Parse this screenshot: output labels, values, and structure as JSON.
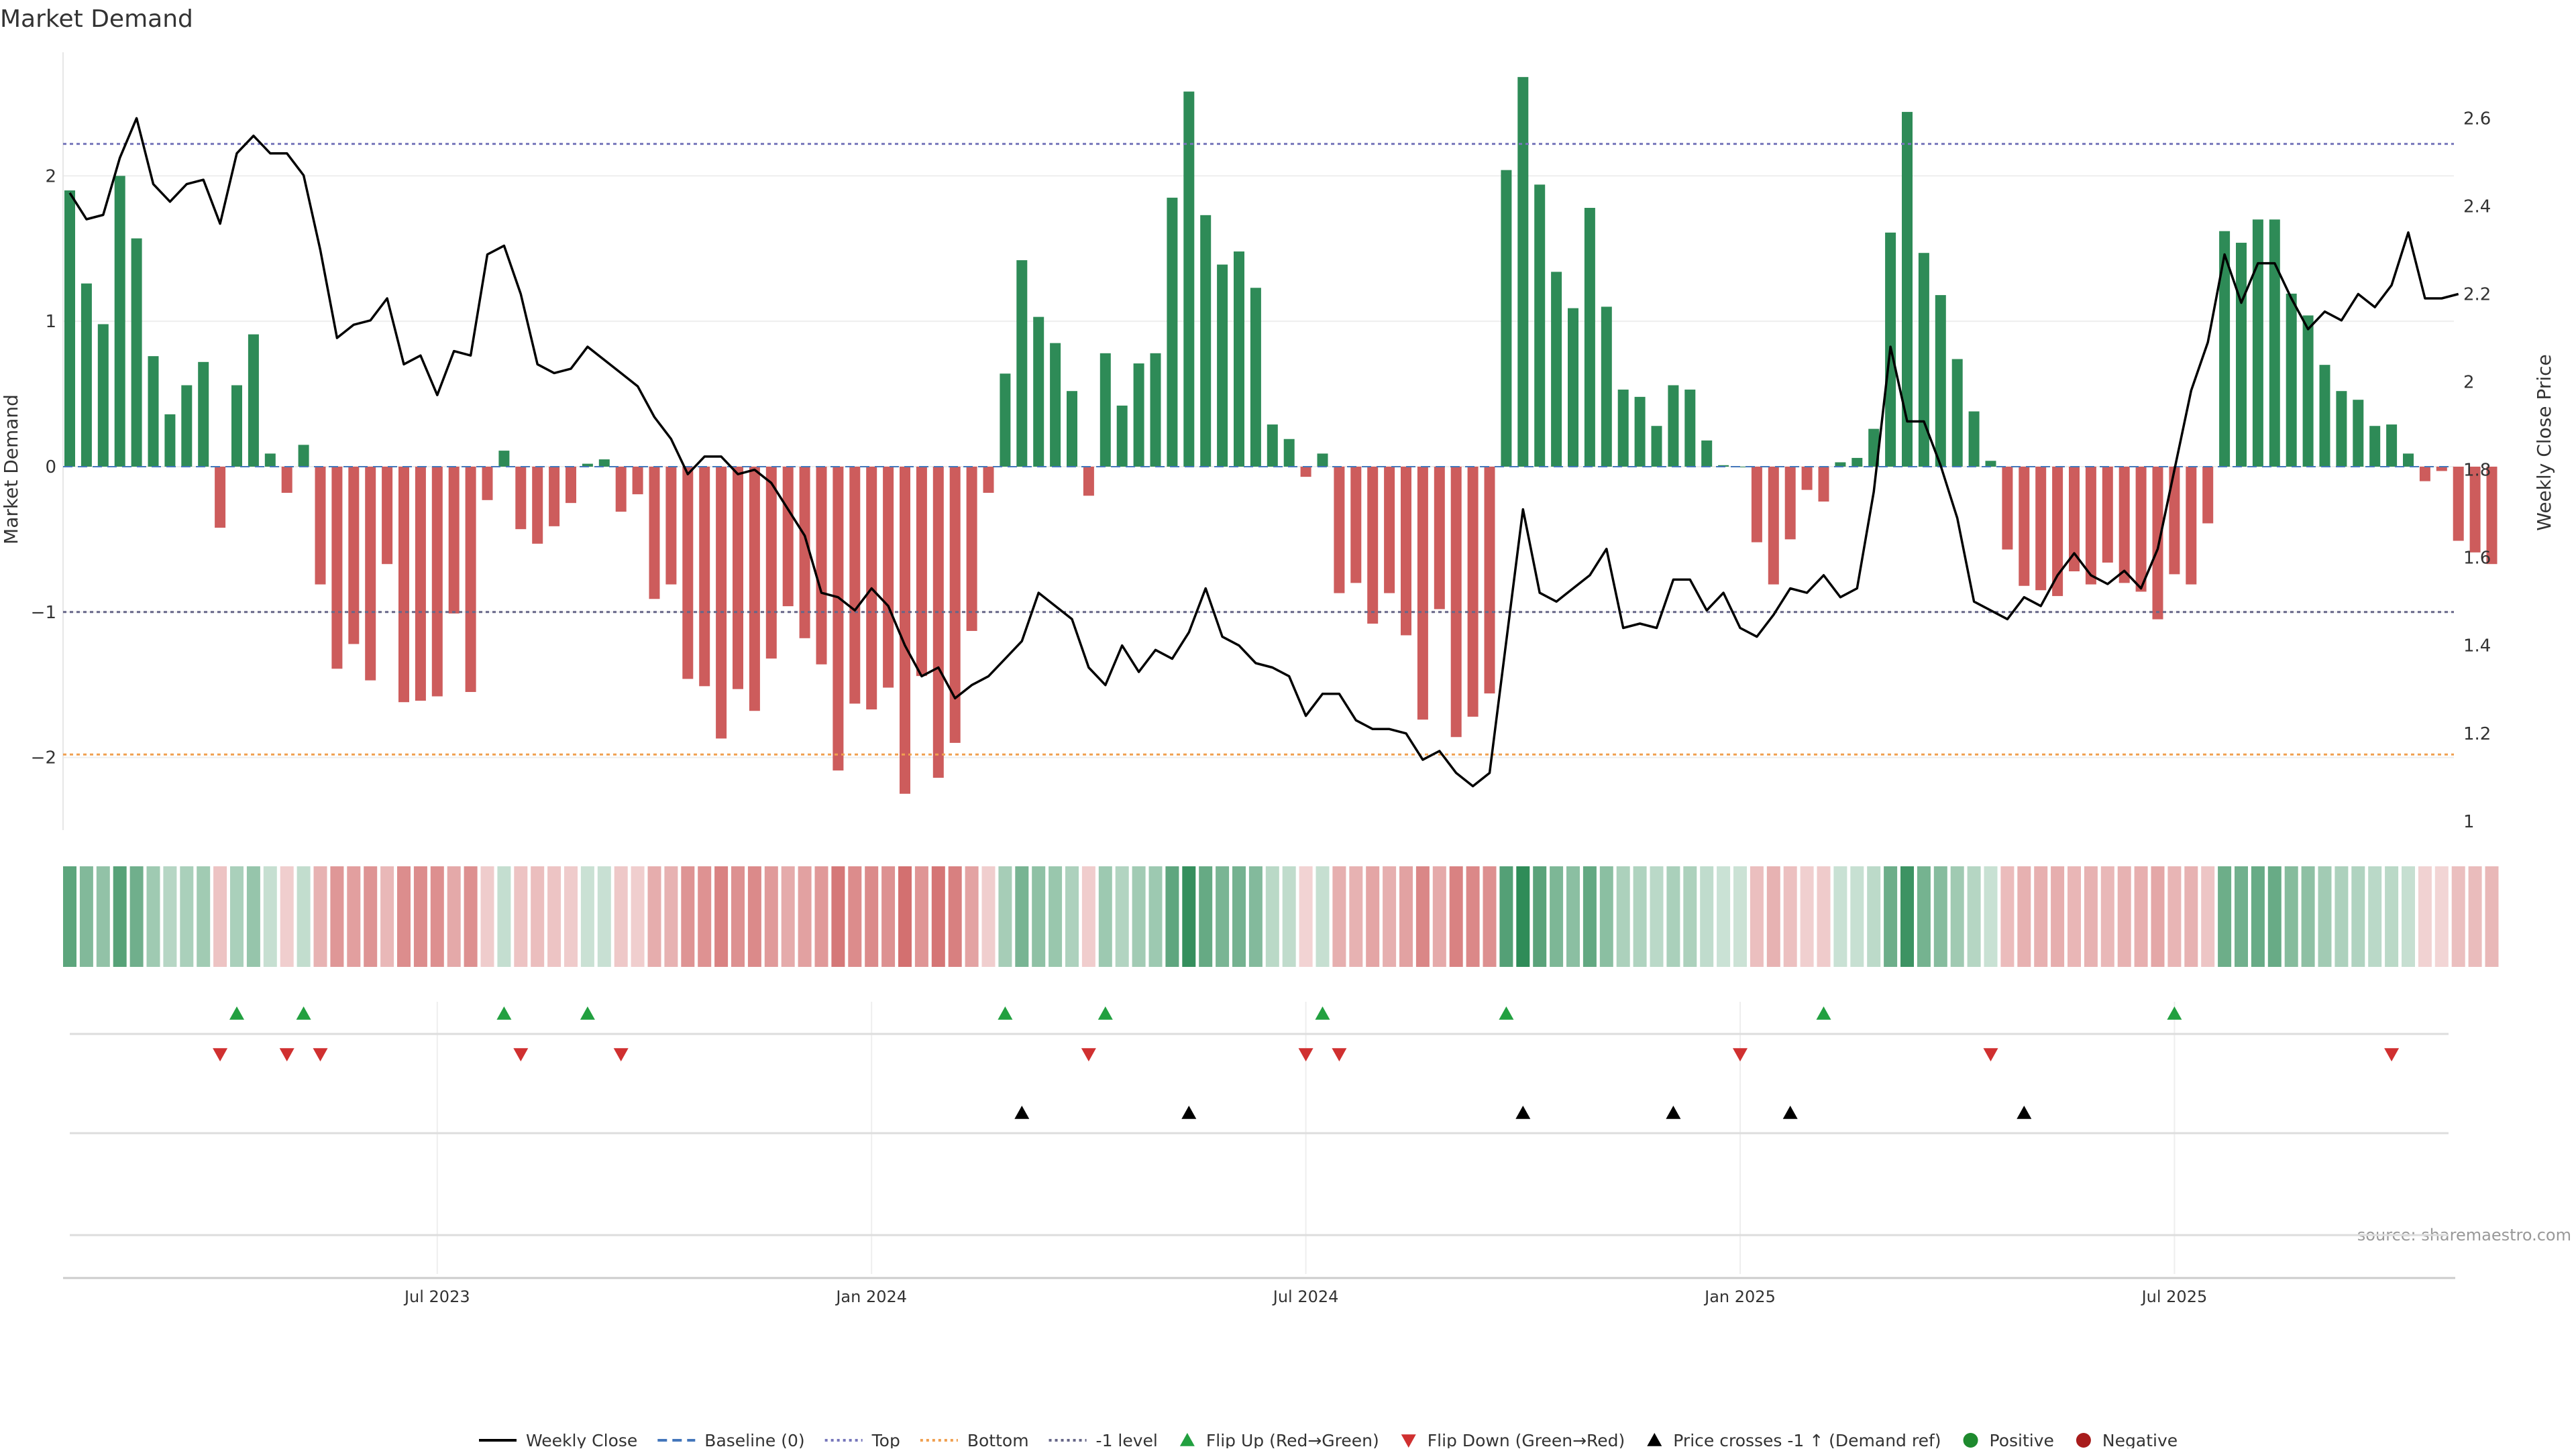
{
  "chart_data": {
    "type": "bar",
    "title": "Market Demand",
    "ylabel_left": "Market Demand",
    "ylabel_right": "Weekly Close Price",
    "ylim_left": [
      -2.5,
      2.85
    ],
    "ylim_right": [
      0.98,
      2.75
    ],
    "left_ticks": [
      {
        "v": 2,
        "label": "2"
      },
      {
        "v": 1,
        "label": "1"
      },
      {
        "v": 0,
        "label": "0"
      },
      {
        "v": -1,
        "label": "−1"
      },
      {
        "v": -2,
        "label": "−2"
      }
    ],
    "right_ticks": [
      {
        "v": 1.0,
        "label": "1"
      },
      {
        "v": 1.2,
        "label": "1.2"
      },
      {
        "v": 1.4,
        "label": "1.4"
      },
      {
        "v": 1.6,
        "label": "1.6"
      },
      {
        "v": 1.8,
        "label": "1.8"
      },
      {
        "v": 2.0,
        "label": "2"
      },
      {
        "v": 2.2,
        "label": "2.2"
      },
      {
        "v": 2.4,
        "label": "2.4"
      },
      {
        "v": 2.6,
        "label": "2.6"
      }
    ],
    "x_ticks": [
      {
        "week": 22,
        "label": "Jul 2023"
      },
      {
        "week": 48,
        "label": "Jan 2024"
      },
      {
        "week": 74,
        "label": "Jul 2024"
      },
      {
        "week": 100,
        "label": "Jan 2025"
      },
      {
        "week": 126,
        "label": "Jul 2025"
      }
    ],
    "reference_lines": [
      {
        "name": "Top",
        "value": 2.22,
        "color": "#7777bb"
      },
      {
        "name": "-1 level",
        "value": -1.0,
        "color": "#666688"
      },
      {
        "name": "Bottom",
        "value": -1.98,
        "color": "#f0a050"
      }
    ],
    "colors": {
      "positive": "#2e8b57",
      "negative": "#cd5c5c",
      "price": "#000000",
      "flip_up": "#22a040",
      "flip_down": "#d03030",
      "cross": "#000000"
    },
    "demand": [
      1.9,
      1.26,
      0.98,
      2.0,
      1.57,
      0.76,
      0.36,
      0.56,
      0.72,
      -0.42,
      0.56,
      0.91,
      0.09,
      -0.18,
      0.15,
      -0.81,
      -1.39,
      -1.22,
      -1.47,
      -0.67,
      -1.62,
      -1.61,
      -1.58,
      -1.01,
      -1.55,
      -0.23,
      0.11,
      -0.43,
      -0.53,
      -0.41,
      -0.25,
      0.02,
      0.05,
      -0.31,
      -0.19,
      -0.91,
      -0.81,
      -1.46,
      -1.51,
      -1.87,
      -1.53,
      -1.68,
      -1.32,
      -0.96,
      -1.18,
      -1.36,
      -2.09,
      -1.63,
      -1.67,
      -1.52,
      -2.25,
      -1.44,
      -2.14,
      -1.9,
      -1.13,
      -0.18,
      0.64,
      1.42,
      1.03,
      0.85,
      0.52,
      -0.2,
      0.78,
      0.42,
      0.71,
      0.78,
      1.85,
      2.58,
      1.73,
      1.39,
      1.48,
      1.23,
      0.29,
      0.19,
      -0.07,
      0.09,
      -0.87,
      -0.8,
      -1.08,
      -0.87,
      -1.16,
      -1.74,
      -0.98,
      -1.86,
      -1.72,
      -1.56,
      2.04,
      2.68,
      1.94,
      1.34,
      1.09,
      1.78,
      1.1,
      0.53,
      0.48,
      0.28,
      0.56,
      0.53,
      0.18,
      0.01,
      0.0,
      -0.52,
      -0.81,
      -0.5,
      -0.16,
      -0.24,
      0.03,
      0.06,
      0.26,
      1.61,
      2.44,
      1.47,
      1.18,
      0.74,
      0.38,
      0.04,
      -0.57,
      -0.82,
      -0.85,
      -0.89,
      -0.72,
      -0.81,
      -0.66,
      -0.8,
      -0.86,
      -1.05,
      -0.74,
      -0.81,
      -0.39,
      1.62,
      1.54,
      1.7,
      1.7,
      1.19,
      1.04,
      0.7,
      0.52,
      0.46,
      0.28,
      0.29,
      0.09,
      -0.1,
      -0.03,
      -0.51,
      -0.59,
      -0.67
    ],
    "price": [
      2.43,
      2.37,
      2.38,
      2.51,
      2.6,
      2.45,
      2.41,
      2.45,
      2.46,
      2.36,
      2.52,
      2.56,
      2.52,
      2.52,
      2.47,
      2.3,
      2.1,
      2.13,
      2.14,
      2.19,
      2.04,
      2.06,
      1.97,
      2.07,
      2.06,
      2.29,
      2.31,
      2.2,
      2.04,
      2.02,
      2.03,
      2.08,
      2.05,
      2.02,
      1.99,
      1.92,
      1.87,
      1.79,
      1.83,
      1.83,
      1.79,
      1.8,
      1.77,
      1.71,
      1.65,
      1.52,
      1.51,
      1.48,
      1.53,
      1.49,
      1.4,
      1.33,
      1.35,
      1.28,
      1.31,
      1.33,
      1.37,
      1.41,
      1.52,
      1.49,
      1.46,
      1.35,
      1.31,
      1.4,
      1.34,
      1.39,
      1.37,
      1.43,
      1.53,
      1.42,
      1.4,
      1.36,
      1.35,
      1.33,
      1.24,
      1.29,
      1.29,
      1.23,
      1.21,
      1.21,
      1.2,
      1.14,
      1.16,
      1.11,
      1.08,
      1.11,
      1.41,
      1.71,
      1.52,
      1.5,
      1.53,
      1.56,
      1.62,
      1.44,
      1.45,
      1.44,
      1.55,
      1.55,
      1.48,
      1.52,
      1.44,
      1.42,
      1.47,
      1.53,
      1.52,
      1.56,
      1.51,
      1.53,
      1.75,
      2.08,
      1.91,
      1.91,
      1.81,
      1.69,
      1.5,
      1.48,
      1.46,
      1.51,
      1.49,
      1.56,
      1.61,
      1.56,
      1.54,
      1.57,
      1.53,
      1.62,
      1.8,
      1.98,
      2.09,
      2.29,
      2.18,
      2.27,
      2.27,
      2.19,
      2.12,
      2.16,
      2.14,
      2.2,
      2.17,
      2.22,
      2.34,
      2.19,
      2.19,
      2.2
    ],
    "flip_up_weeks": [
      10,
      14,
      26,
      31,
      56,
      62,
      75,
      86,
      105,
      126
    ],
    "flip_down_weeks": [
      9,
      13,
      15,
      27,
      33,
      61,
      74,
      76,
      100,
      115,
      139
    ],
    "cross_weeks": [
      57,
      67,
      87,
      96,
      103,
      117
    ],
    "legend": [
      {
        "kind": "line",
        "label": "Weekly Close",
        "color": "#000000"
      },
      {
        "kind": "dash",
        "label": "Baseline (0)",
        "color": "#4477bb"
      },
      {
        "kind": "dot",
        "label": "Top",
        "color": "#7777bb"
      },
      {
        "kind": "dot",
        "label": "Bottom",
        "color": "#f0a050"
      },
      {
        "kind": "dot",
        "label": "-1 level",
        "color": "#666688"
      },
      {
        "kind": "tri-up",
        "label": "Flip Up (Red→Green)",
        "color": "#22a040"
      },
      {
        "kind": "tri-down",
        "label": "Flip Down (Green→Red)",
        "color": "#d03030"
      },
      {
        "kind": "tri-up",
        "label": "Price crosses -1 ↑ (Demand ref)",
        "color": "#000000"
      },
      {
        "kind": "circle",
        "label": "Positive",
        "color": "#1e8a2e"
      },
      {
        "kind": "circle",
        "label": "Negative",
        "color": "#a81c1c"
      }
    ],
    "source_note": "source: sharemaestro.com"
  }
}
